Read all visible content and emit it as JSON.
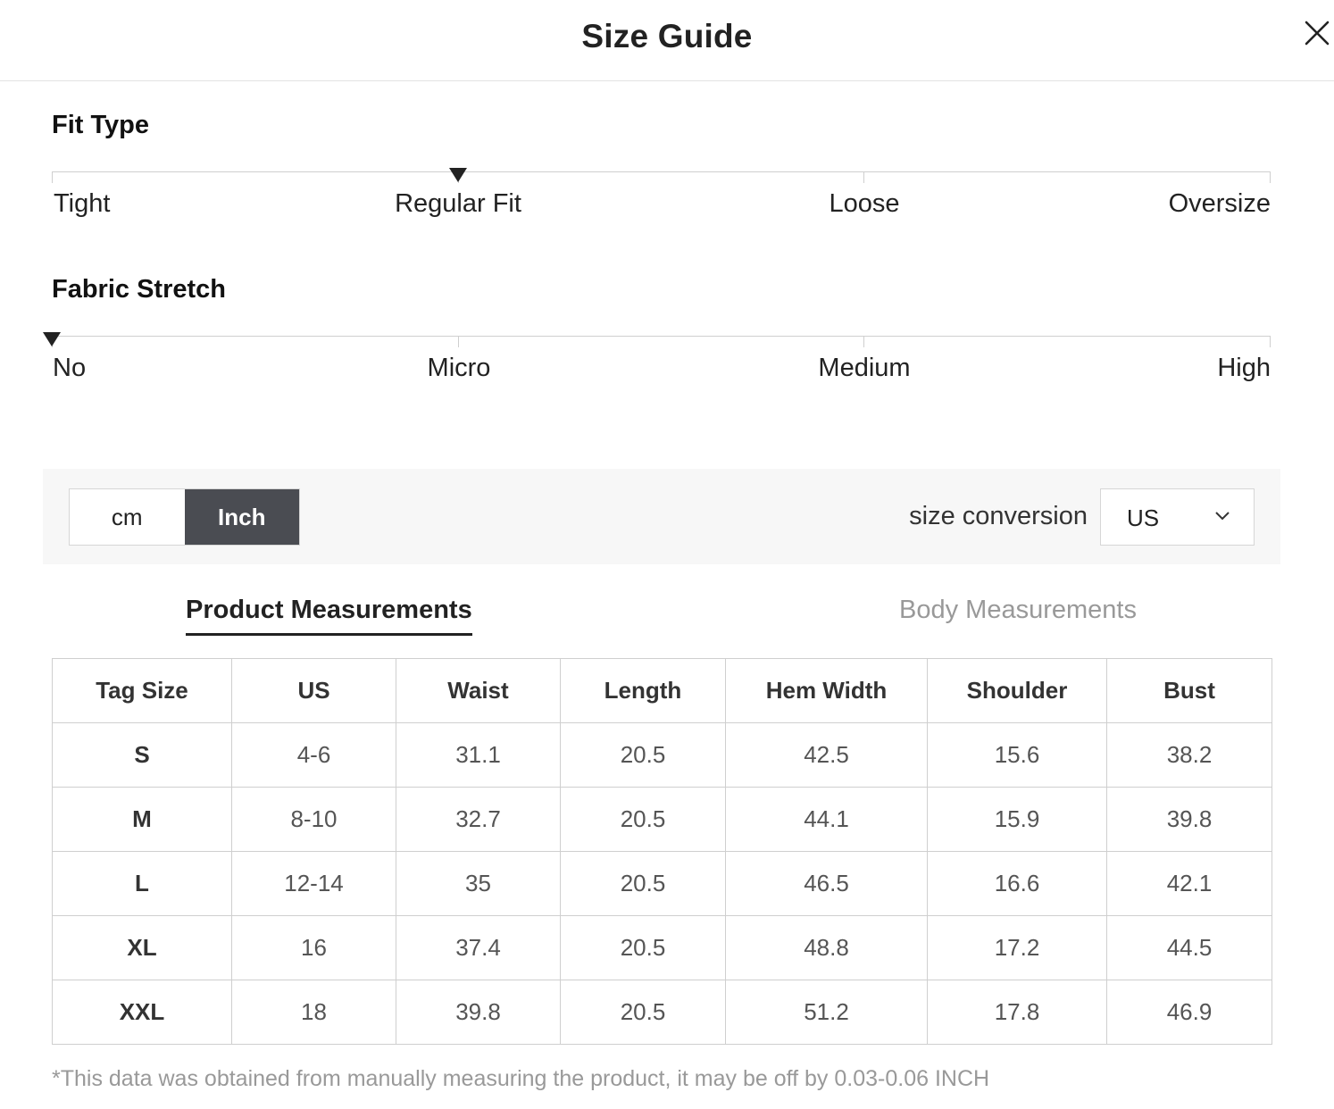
{
  "header": {
    "title": "Size Guide"
  },
  "fit_type": {
    "title": "Fit Type",
    "labels": [
      "Tight",
      "Regular Fit",
      "Loose",
      "Oversize"
    ],
    "selected": "Regular Fit",
    "selected_index": 1
  },
  "fabric_stretch": {
    "title": "Fabric Stretch",
    "labels": [
      "No",
      "Micro",
      "Medium",
      "High"
    ],
    "selected": "No",
    "selected_index": 0
  },
  "units": {
    "options": [
      "cm",
      "Inch"
    ],
    "selected": "Inch",
    "conversion_label": "size conversion",
    "conversion_value": "US"
  },
  "tabs": {
    "product": "Product Measurements",
    "body": "Body Measurements",
    "active": "Product Measurements"
  },
  "table": {
    "headers": [
      "Tag Size",
      "US",
      "Waist",
      "Length",
      "Hem Width",
      "Shoulder",
      "Bust"
    ],
    "rows": [
      [
        "S",
        "4-6",
        "31.1",
        "20.5",
        "42.5",
        "15.6",
        "38.2"
      ],
      [
        "M",
        "8-10",
        "32.7",
        "20.5",
        "44.1",
        "15.9",
        "39.8"
      ],
      [
        "L",
        "12-14",
        "35",
        "20.5",
        "46.5",
        "16.6",
        "42.1"
      ],
      [
        "XL",
        "16",
        "37.4",
        "20.5",
        "48.8",
        "17.2",
        "44.5"
      ],
      [
        "XXL",
        "18",
        "39.8",
        "20.5",
        "51.2",
        "17.8",
        "46.9"
      ]
    ]
  },
  "footnote": "*This data was obtained from manually measuring the product, it may be off by 0.03-0.06 INCH",
  "colors": {
    "toggle_active_bg": "#4a4c52",
    "inactive_tab": "#999999",
    "border": "#cfcfcf"
  },
  "icons": {
    "close": "close-icon",
    "chevron": "chevron-down-icon",
    "marker": "triangle-down-icon"
  }
}
